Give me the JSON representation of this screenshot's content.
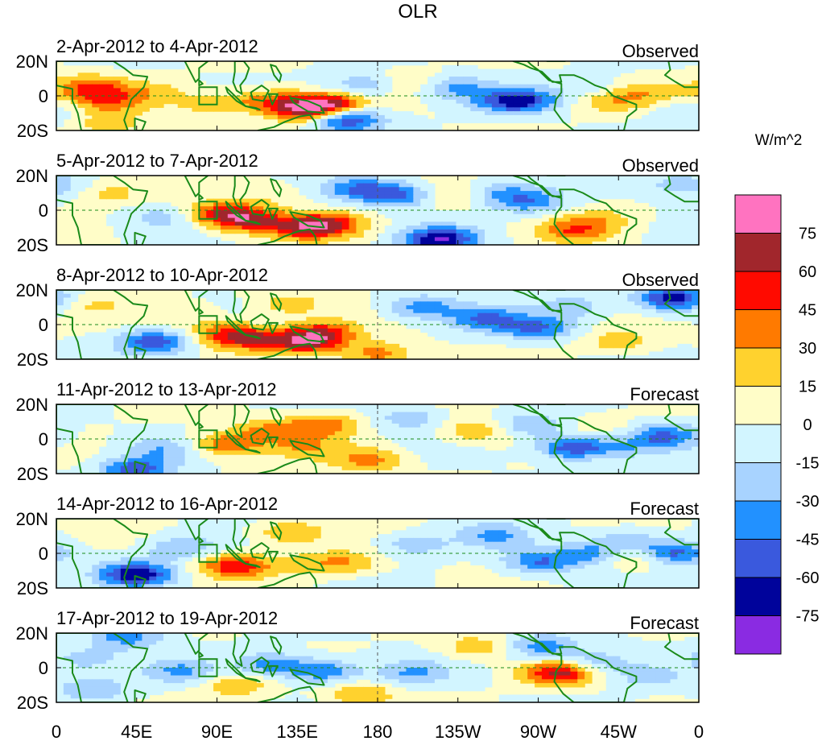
{
  "chart_data": {
    "type": "heatmap",
    "title": "OLR",
    "units_label": "W/m^2",
    "y_ticks": [
      "20N",
      "0",
      "20S"
    ],
    "x_ticks": [
      "0",
      "45E",
      "90E",
      "135E",
      "180",
      "135W",
      "90W",
      "45W",
      "0"
    ],
    "colorbar": {
      "levels": [
        75,
        60,
        45,
        30,
        15,
        0,
        -15,
        -30,
        -45,
        -60,
        -75
      ],
      "colors": [
        "#ff73c0",
        "#a1262c",
        "#ff0a00",
        "#ff7a00",
        "#ffd22e",
        "#fffdc8",
        "#d2f5ff",
        "#a8d3ff",
        "#2291ff",
        "#3a59dd",
        "#00039b",
        "#8a2be2"
      ]
    },
    "panels": [
      {
        "date_range": "2-Apr-2012 to 4-Apr-2012",
        "kind": "Observed"
      },
      {
        "date_range": "5-Apr-2012 to 7-Apr-2012",
        "kind": "Observed"
      },
      {
        "date_range": "8-Apr-2012 to 10-Apr-2012",
        "kind": "Observed"
      },
      {
        "date_range": "11-Apr-2012 to 13-Apr-2012",
        "kind": "Forecast"
      },
      {
        "date_range": "14-Apr-2012 to 16-Apr-2012",
        "kind": "Forecast"
      },
      {
        "date_range": "17-Apr-2012 to 19-Apr-2012",
        "kind": "Forecast"
      }
    ],
    "anomaly_blobs": [
      [
        [
          18,
          5,
          45
        ],
        [
          30,
          -3,
          35
        ],
        [
          55,
          2,
          18
        ],
        [
          85,
          -5,
          20
        ],
        [
          118,
          -3,
          40
        ],
        [
          140,
          -8,
          65
        ],
        [
          155,
          -5,
          58
        ],
        [
          162,
          -13,
          -70
        ],
        [
          172,
          6,
          -30
        ],
        [
          200,
          8,
          20
        ],
        [
          222,
          5,
          -35
        ],
        [
          255,
          -3,
          -60
        ],
        [
          270,
          -2,
          -15
        ],
        [
          300,
          5,
          -15
        ],
        [
          310,
          -3,
          25
        ],
        [
          332,
          2,
          20
        ],
        [
          350,
          -10,
          -15
        ],
        [
          30,
          -17,
          25
        ]
      ],
      [
        [
          30,
          10,
          20
        ],
        [
          60,
          -4,
          -20
        ],
        [
          92,
          -2,
          55
        ],
        [
          110,
          -6,
          50
        ],
        [
          140,
          -10,
          52
        ],
        [
          155,
          -8,
          40
        ],
        [
          170,
          12,
          -40
        ],
        [
          192,
          9,
          -45
        ],
        [
          215,
          -17,
          -75
        ],
        [
          225,
          8,
          22
        ],
        [
          245,
          10,
          -30
        ],
        [
          265,
          5,
          -40
        ],
        [
          290,
          -12,
          38
        ],
        [
          305,
          -5,
          20
        ],
        [
          352,
          15,
          -30
        ],
        [
          120,
          10,
          15
        ]
      ],
      [
        [
          20,
          12,
          15
        ],
        [
          75,
          5,
          12
        ],
        [
          95,
          -6,
          45
        ],
        [
          112,
          -8,
          40
        ],
        [
          140,
          -10,
          62
        ],
        [
          150,
          -4,
          40
        ],
        [
          180,
          -17,
          40
        ],
        [
          205,
          10,
          -40
        ],
        [
          240,
          3,
          -45
        ],
        [
          270,
          -2,
          -45
        ],
        [
          290,
          10,
          -25
        ],
        [
          345,
          15,
          -70
        ],
        [
          55,
          -10,
          -55
        ],
        [
          130,
          12,
          25
        ],
        [
          315,
          -10,
          25
        ]
      ],
      [
        [
          45,
          -18,
          -55
        ],
        [
          60,
          -6,
          -25
        ],
        [
          95,
          -3,
          45
        ],
        [
          120,
          5,
          30
        ],
        [
          140,
          -5,
          25
        ],
        [
          150,
          8,
          40
        ],
        [
          175,
          -12,
          35
        ],
        [
          198,
          12,
          -25
        ],
        [
          235,
          5,
          30
        ],
        [
          265,
          8,
          -30
        ],
        [
          290,
          -5,
          -60
        ],
        [
          320,
          -5,
          -20
        ],
        [
          340,
          2,
          -45
        ],
        [
          305,
          8,
          12
        ]
      ],
      [
        [
          45,
          -12,
          -70
        ],
        [
          70,
          3,
          -30
        ],
        [
          100,
          -7,
          55
        ],
        [
          130,
          12,
          30
        ],
        [
          145,
          -6,
          20
        ],
        [
          165,
          -5,
          25
        ],
        [
          200,
          5,
          -25
        ],
        [
          245,
          10,
          -30
        ],
        [
          270,
          -5,
          -45
        ],
        [
          300,
          0,
          -35
        ],
        [
          325,
          -3,
          30
        ],
        [
          345,
          0,
          -55
        ],
        [
          320,
          8,
          -25
        ]
      ],
      [
        [
          15,
          5,
          -25
        ],
        [
          40,
          18,
          -40
        ],
        [
          70,
          -2,
          -30
        ],
        [
          100,
          -10,
          28
        ],
        [
          120,
          2,
          -40
        ],
        [
          150,
          -2,
          -45
        ],
        [
          170,
          -15,
          30
        ],
        [
          200,
          -3,
          -30
        ],
        [
          235,
          12,
          25
        ],
        [
          272,
          12,
          -40
        ],
        [
          282,
          -3,
          65
        ],
        [
          302,
          3,
          -30
        ],
        [
          330,
          -5,
          -20
        ],
        [
          20,
          -12,
          -30
        ]
      ]
    ]
  }
}
